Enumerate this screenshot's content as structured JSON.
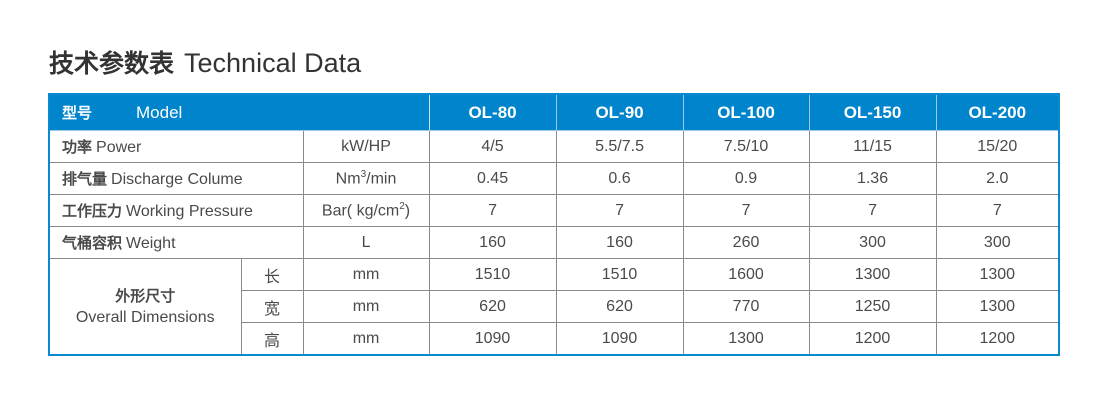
{
  "title": {
    "zh": "技术参数表",
    "en": "Technical Data"
  },
  "header": {
    "zh": "型号",
    "en": "Model",
    "models": [
      "OL-80",
      "OL-90",
      "OL-100",
      "OL-150",
      "OL-200"
    ]
  },
  "rows": [
    {
      "zh": "功率",
      "en": "Power",
      "unit": "kW/HP",
      "values": [
        "4/5",
        "5.5/7.5",
        "7.5/10",
        "11/15",
        "15/20"
      ]
    },
    {
      "zh": "排气量",
      "en": "Discharge Colume",
      "unit_base": "Nm",
      "unit_sup": "3",
      "unit_tail": "/min",
      "values": [
        "0.45",
        "0.6",
        "0.9",
        "1.36",
        "2.0"
      ]
    },
    {
      "zh": "工作压力",
      "en": "Working Pressure",
      "unit_base": "Bar( kg/cm",
      "unit_sup": "2",
      "unit_tail": ")",
      "values": [
        "7",
        "7",
        "7",
        "7",
        "7"
      ]
    },
    {
      "zh": "气桶容积",
      "en": "Weight",
      "unit": "L",
      "values": [
        "160",
        "160",
        "260",
        "300",
        "300"
      ]
    }
  ],
  "dimensions": {
    "zh": "外形尺寸",
    "en": "Overall Dimensions",
    "rows": [
      {
        "label": "长",
        "unit": "mm",
        "values": [
          "1510",
          "1510",
          "1600",
          "1300",
          "1300"
        ]
      },
      {
        "label": "宽",
        "unit": "mm",
        "values": [
          "620",
          "620",
          "770",
          "1250",
          "1300"
        ]
      },
      {
        "label": "高",
        "unit": "mm",
        "values": [
          "1090",
          "1090",
          "1300",
          "1200",
          "1200"
        ]
      }
    ]
  },
  "colors": {
    "header_bg": "#0084cc",
    "border_accent": "#0a88d0"
  }
}
